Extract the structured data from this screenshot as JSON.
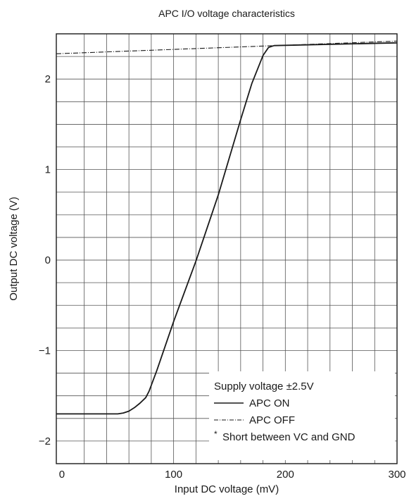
{
  "chart_data": {
    "type": "line",
    "title": "APC I/O voltage characteristics",
    "xlabel": "Input DC voltage (mV)",
    "ylabel": "Output DC voltage (V)",
    "xlim": [
      -5,
      300
    ],
    "ylim": [
      -2.25,
      2.5
    ],
    "x_ticks": [
      0,
      100,
      200,
      300
    ],
    "x_tick_labels": [
      "0",
      "100",
      "200",
      "300"
    ],
    "y_ticks": [
      -2,
      -1,
      0,
      1,
      2
    ],
    "y_tick_labels": [
      "−2",
      "−1",
      "0",
      "1",
      "2"
    ],
    "grid": true,
    "legend_placement": "bottom-right",
    "legend": {
      "title": "Supply voltage ±2.5V",
      "note_marker": "*",
      "note": "Short between VC and GND"
    },
    "series": [
      {
        "name": "APC ON",
        "style": "solid",
        "color": "#1a1a1a",
        "x": [
          -5,
          50,
          55,
          60,
          65,
          70,
          75,
          78,
          85,
          100,
          120,
          140,
          160,
          170,
          180,
          185,
          190,
          300
        ],
        "y": [
          -1.7,
          -1.7,
          -1.69,
          -1.67,
          -1.63,
          -1.58,
          -1.52,
          -1.45,
          -1.22,
          -0.68,
          -0.01,
          0.72,
          1.55,
          1.95,
          2.26,
          2.35,
          2.37,
          2.4
        ]
      },
      {
        "name": "APC OFF",
        "style": "dash-dot",
        "color": "#1a1a1a",
        "x": [
          -5,
          300
        ],
        "y": [
          2.28,
          2.42
        ]
      }
    ]
  }
}
